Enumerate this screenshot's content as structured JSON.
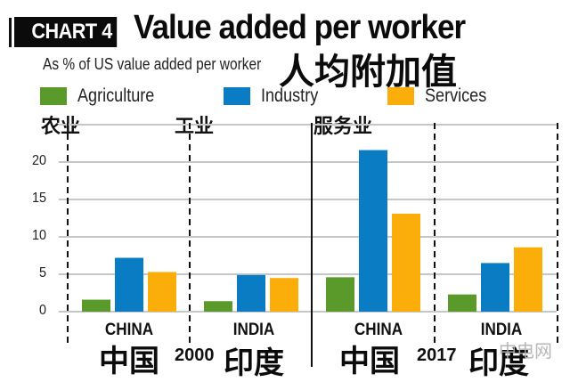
{
  "header": {
    "chart_tag": "CHART 4",
    "title": "Value added per worker",
    "subtitle": "As % of US value added per worker",
    "title_cn": "人均附加值"
  },
  "legend": [
    {
      "label": "Agriculture",
      "label_cn": "农业",
      "color": "#5a9a2a"
    },
    {
      "label": "Industry",
      "label_cn": "工业",
      "color": "#0a7cc4"
    },
    {
      "label": "Services",
      "label_cn": "服务业",
      "color": "#fbad0a"
    }
  ],
  "groups": [
    {
      "country": "CHINA",
      "country_cn": "中国",
      "year": "2000"
    },
    {
      "country": "INDIA",
      "country_cn": "印度",
      "year": "2000"
    },
    {
      "country": "CHINA",
      "country_cn": "中国",
      "year": "2017"
    },
    {
      "country": "INDIA",
      "country_cn": "印度",
      "year": "2017"
    }
  ],
  "years": {
    "first": "2000",
    "second": "2017"
  },
  "watermark": "中电网",
  "chart_data": {
    "type": "bar",
    "title": "Value added per worker",
    "subtitle": "As % of US value added per worker",
    "xlabel": "",
    "ylabel": "",
    "categories": [
      "China 2000",
      "India 2000",
      "China 2017",
      "India 2017"
    ],
    "series": [
      {
        "name": "Agriculture",
        "color": "#5a9a2a",
        "values": [
          1.6,
          1.4,
          4.6,
          2.3
        ]
      },
      {
        "name": "Industry",
        "color": "#0a7cc4",
        "values": [
          7.2,
          4.9,
          21.6,
          6.5
        ]
      },
      {
        "name": "Services",
        "color": "#fbad0a",
        "values": [
          5.3,
          4.5,
          13.1,
          8.6
        ]
      }
    ],
    "yticks": [
      0,
      5,
      10,
      15,
      20
    ],
    "ylim": [
      0,
      25
    ],
    "grid": true,
    "legend_position": "top-left"
  }
}
